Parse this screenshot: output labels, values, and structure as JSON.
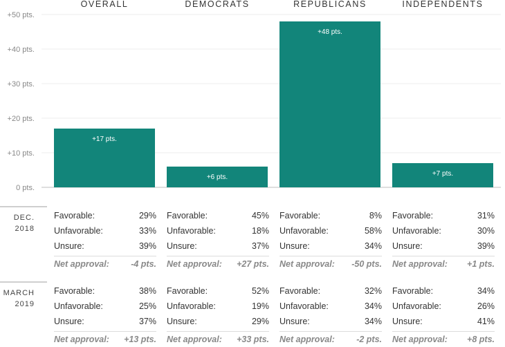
{
  "chart_data": {
    "type": "bar",
    "categories": [
      "OVERALL",
      "DEMOCRATS",
      "REPUBLICANS",
      "INDEPENDENTS"
    ],
    "values": [
      17,
      6,
      48,
      7
    ],
    "value_labels": [
      "+17 pts.",
      "+6 pts.",
      "+48 pts.",
      "+7 pts."
    ],
    "ylim": [
      0,
      50
    ],
    "y_ticks": [
      0,
      10,
      20,
      30,
      40,
      50
    ],
    "y_tick_labels": [
      "0 pts.",
      "+10 pts.",
      "+20 pts.",
      "+30 pts.",
      "+40 pts.",
      "+50 pts."
    ],
    "grid": true,
    "bar_color": "#12857a"
  },
  "tables": [
    {
      "period": [
        "DEC.",
        "2018"
      ],
      "columns": [
        {
          "rows": [
            [
              "Favorable:",
              "29%"
            ],
            [
              "Unfavorable:",
              "33%"
            ],
            [
              "Unsure:",
              "39%"
            ]
          ],
          "net": [
            "Net approval:",
            "-4 pts."
          ]
        },
        {
          "rows": [
            [
              "Favorable:",
              "45%"
            ],
            [
              "Unfavorable:",
              "18%"
            ],
            [
              "Unsure:",
              "37%"
            ]
          ],
          "net": [
            "Net approval:",
            "+27 pts."
          ]
        },
        {
          "rows": [
            [
              "Favorable:",
              "8%"
            ],
            [
              "Unfavorable:",
              "58%"
            ],
            [
              "Unsure:",
              "34%"
            ]
          ],
          "net": [
            "Net approval:",
            "-50 pts."
          ]
        },
        {
          "rows": [
            [
              "Favorable:",
              "31%"
            ],
            [
              "Unfavorable:",
              "30%"
            ],
            [
              "Unsure:",
              "39%"
            ]
          ],
          "net": [
            "Net approval:",
            "+1 pts."
          ]
        }
      ]
    },
    {
      "period": [
        "MARCH",
        "2019"
      ],
      "columns": [
        {
          "rows": [
            [
              "Favorable:",
              "38%"
            ],
            [
              "Unfavorable:",
              "25%"
            ],
            [
              "Unsure:",
              "37%"
            ]
          ],
          "net": [
            "Net approval:",
            "+13 pts."
          ]
        },
        {
          "rows": [
            [
              "Favorable:",
              "52%"
            ],
            [
              "Unfavorable:",
              "19%"
            ],
            [
              "Unsure:",
              "29%"
            ]
          ],
          "net": [
            "Net approval:",
            "+33 pts."
          ]
        },
        {
          "rows": [
            [
              "Favorable:",
              "32%"
            ],
            [
              "Unfavorable:",
              "34%"
            ],
            [
              "Unsure:",
              "34%"
            ]
          ],
          "net": [
            "Net approval:",
            "-2 pts."
          ]
        },
        {
          "rows": [
            [
              "Favorable:",
              "34%"
            ],
            [
              "Unfavorable:",
              "26%"
            ],
            [
              "Unsure:",
              "41%"
            ]
          ],
          "net": [
            "Net approval:",
            "+8 pts."
          ]
        }
      ]
    }
  ]
}
